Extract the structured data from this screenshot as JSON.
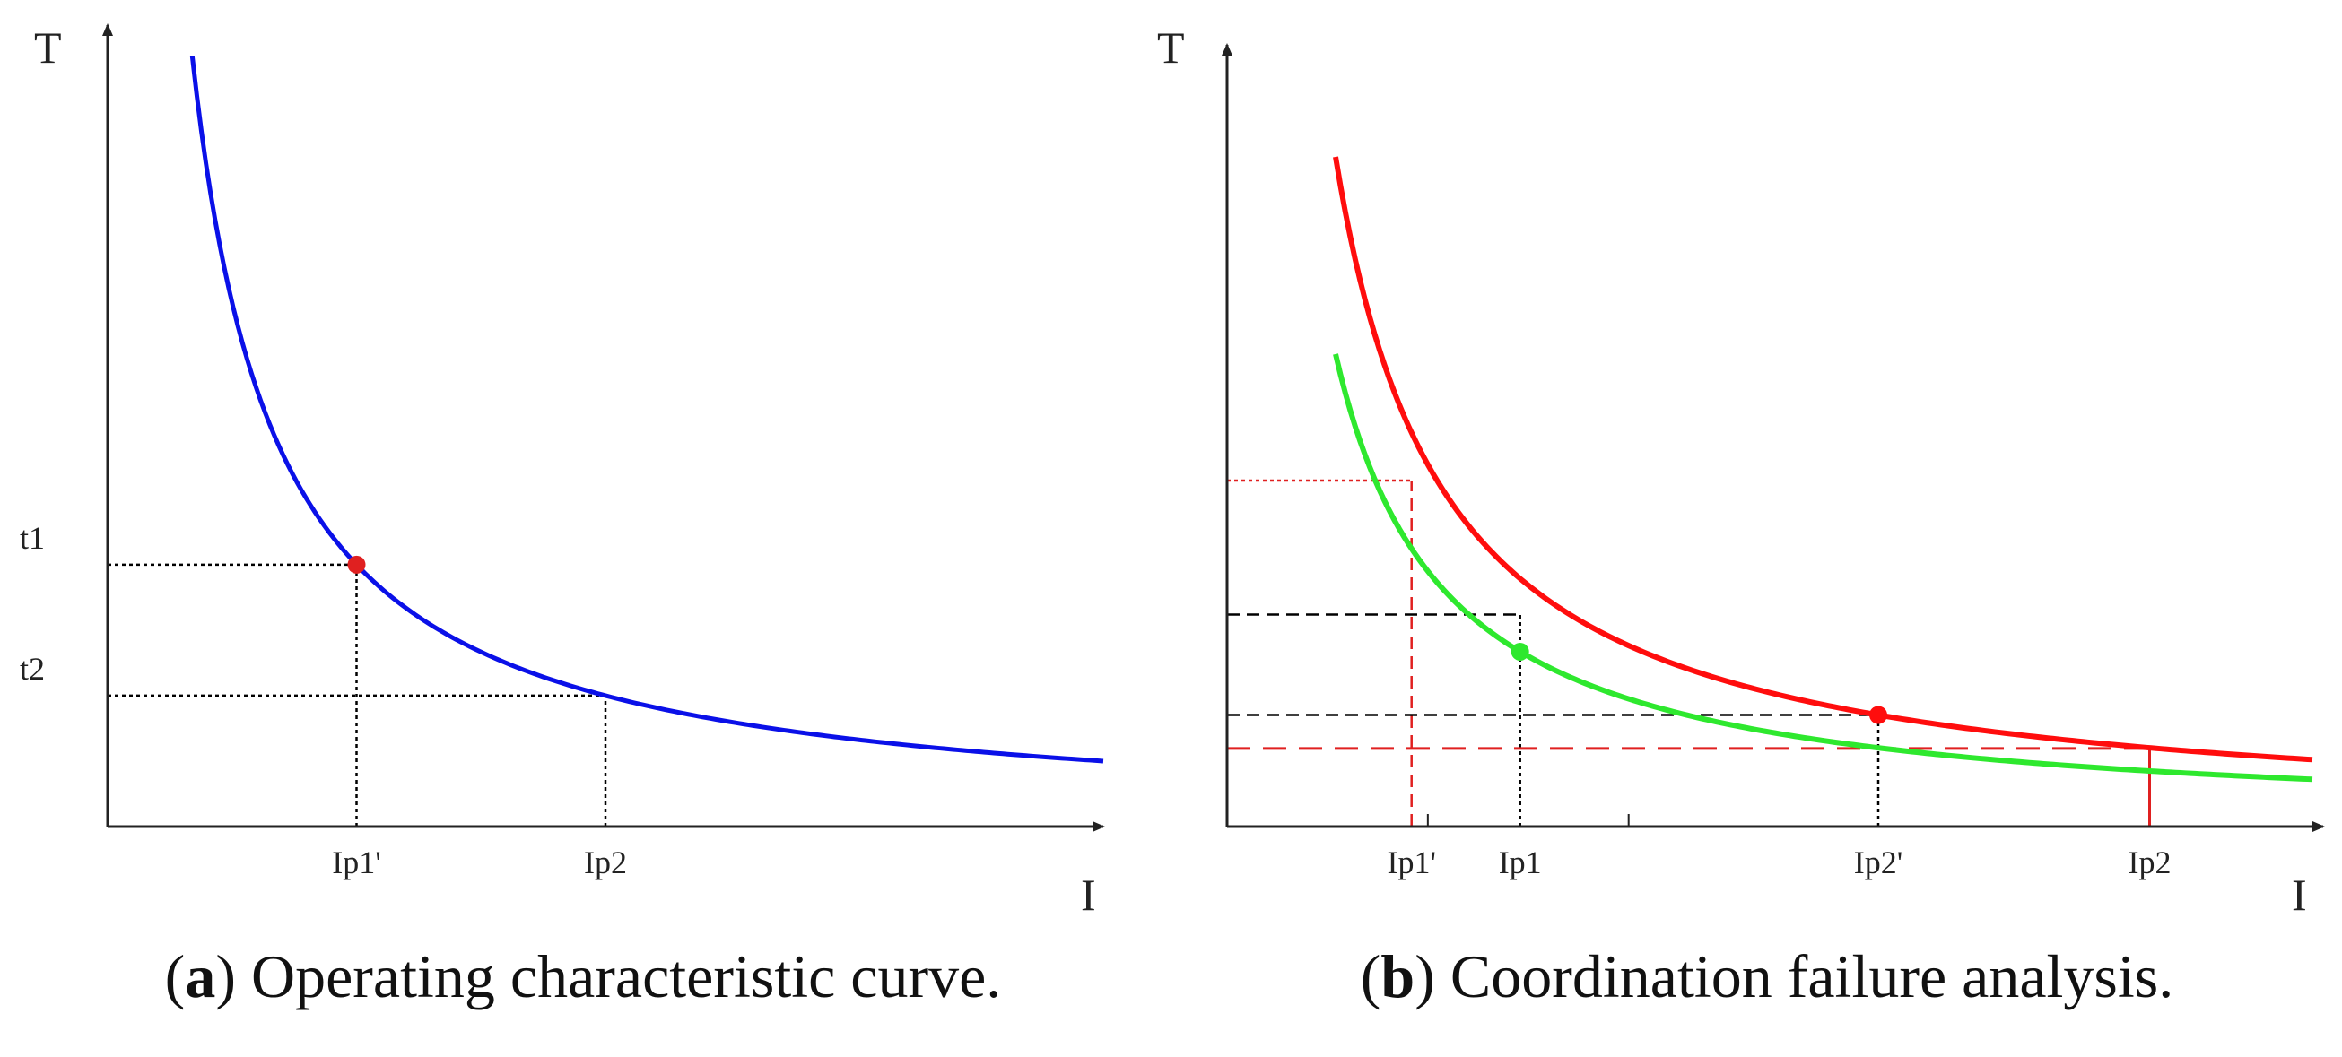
{
  "chart_data": [
    {
      "id": "a",
      "type": "line",
      "caption_label": "a",
      "caption_text": "Operating characteristic curve.",
      "xlabel": "I",
      "ylabel": "T",
      "xlim": [
        0,
        10
      ],
      "ylim": [
        0,
        10
      ],
      "grid": false,
      "series": [
        {
          "name": "operating curve",
          "color": "#0a10e8",
          "k": 8.8,
          "x_start": 0.85,
          "x_end": 10.0
        }
      ],
      "points": [
        {
          "name": "operating point",
          "x": 2.5,
          "y": 3.52,
          "color": "#e02020"
        }
      ],
      "x_ticks": [
        {
          "label": "Ip1'",
          "x": 2.5
        },
        {
          "label": "Ip2",
          "x": 5.0
        }
      ],
      "y_ticks": [
        {
          "label": "t1",
          "y": 3.52
        },
        {
          "label": "t2",
          "y": 1.76
        }
      ],
      "guides": [
        {
          "orientation": "h",
          "from_x": 0,
          "to_x": 2.5,
          "y": 3.52,
          "color": "#000000",
          "style": "dotted"
        },
        {
          "orientation": "v",
          "x": 2.5,
          "from_y": 0,
          "to_y": 3.52,
          "color": "#000000",
          "style": "dotted"
        },
        {
          "orientation": "h",
          "from_x": 0,
          "to_x": 5.0,
          "y": 1.76,
          "color": "#000000",
          "style": "dotted"
        },
        {
          "orientation": "v",
          "x": 5.0,
          "from_y": 0,
          "to_y": 1.76,
          "color": "#000000",
          "style": "dotted"
        }
      ]
    },
    {
      "id": "b",
      "type": "line",
      "caption_label": "b",
      "caption_text": "Coordination failure analysis.",
      "xlabel": "I",
      "ylabel": "T",
      "xlim": [
        0,
        10
      ],
      "ylim": [
        0,
        10
      ],
      "grid": false,
      "series": [
        {
          "name": "upstream curve",
          "color": "#ff0d0d",
          "k": 9.0,
          "x_start": 1.0,
          "x_end": 10.0
        },
        {
          "name": "downstream curve",
          "color": "#2ee82e",
          "k": 6.35,
          "x_start": 1.0,
          "x_end": 10.0
        }
      ],
      "points": [
        {
          "name": "red point",
          "x": 6.0,
          "y": 1.5,
          "color": "#ff0d0d"
        },
        {
          "name": "green point",
          "x": 2.7,
          "y": 2.35,
          "color": "#2ee82e"
        }
      ],
      "x_ticks": [
        {
          "label": "Ip1'",
          "x": 1.7
        },
        {
          "label": "Ip1",
          "x": 2.7
        },
        {
          "label": "Ip2'",
          "x": 6.0
        },
        {
          "label": "Ip2",
          "x": 8.5
        }
      ],
      "minor_ticks": [
        1.85,
        3.7
      ],
      "guides": [
        {
          "orientation": "h",
          "from_x": 0,
          "to_x": 1.7,
          "y": 4.65,
          "color": "#e02020",
          "style": "dotted"
        },
        {
          "orientation": "v",
          "x": 1.7,
          "from_y": 0,
          "to_y": 4.65,
          "color": "#e02020",
          "style": "dashed"
        },
        {
          "orientation": "h",
          "from_x": 0,
          "to_x": 2.7,
          "y": 2.85,
          "color": "#000000",
          "style": "dashed"
        },
        {
          "orientation": "v",
          "x": 2.7,
          "from_y": 0,
          "to_y": 2.85,
          "color": "#000000",
          "style": "dotted"
        },
        {
          "orientation": "h",
          "from_x": 0,
          "to_x": 6.0,
          "y": 1.5,
          "color": "#000000",
          "style": "dashed"
        },
        {
          "orientation": "v",
          "x": 6.0,
          "from_y": 0,
          "to_y": 1.5,
          "color": "#000000",
          "style": "dotted"
        },
        {
          "orientation": "h",
          "from_x": 0,
          "to_x": 8.5,
          "y": 1.05,
          "color": "#e02020",
          "style": "longdash"
        },
        {
          "orientation": "v",
          "x": 8.5,
          "from_y": 0,
          "to_y": 1.05,
          "color": "#e02020",
          "style": "solid"
        }
      ]
    }
  ]
}
